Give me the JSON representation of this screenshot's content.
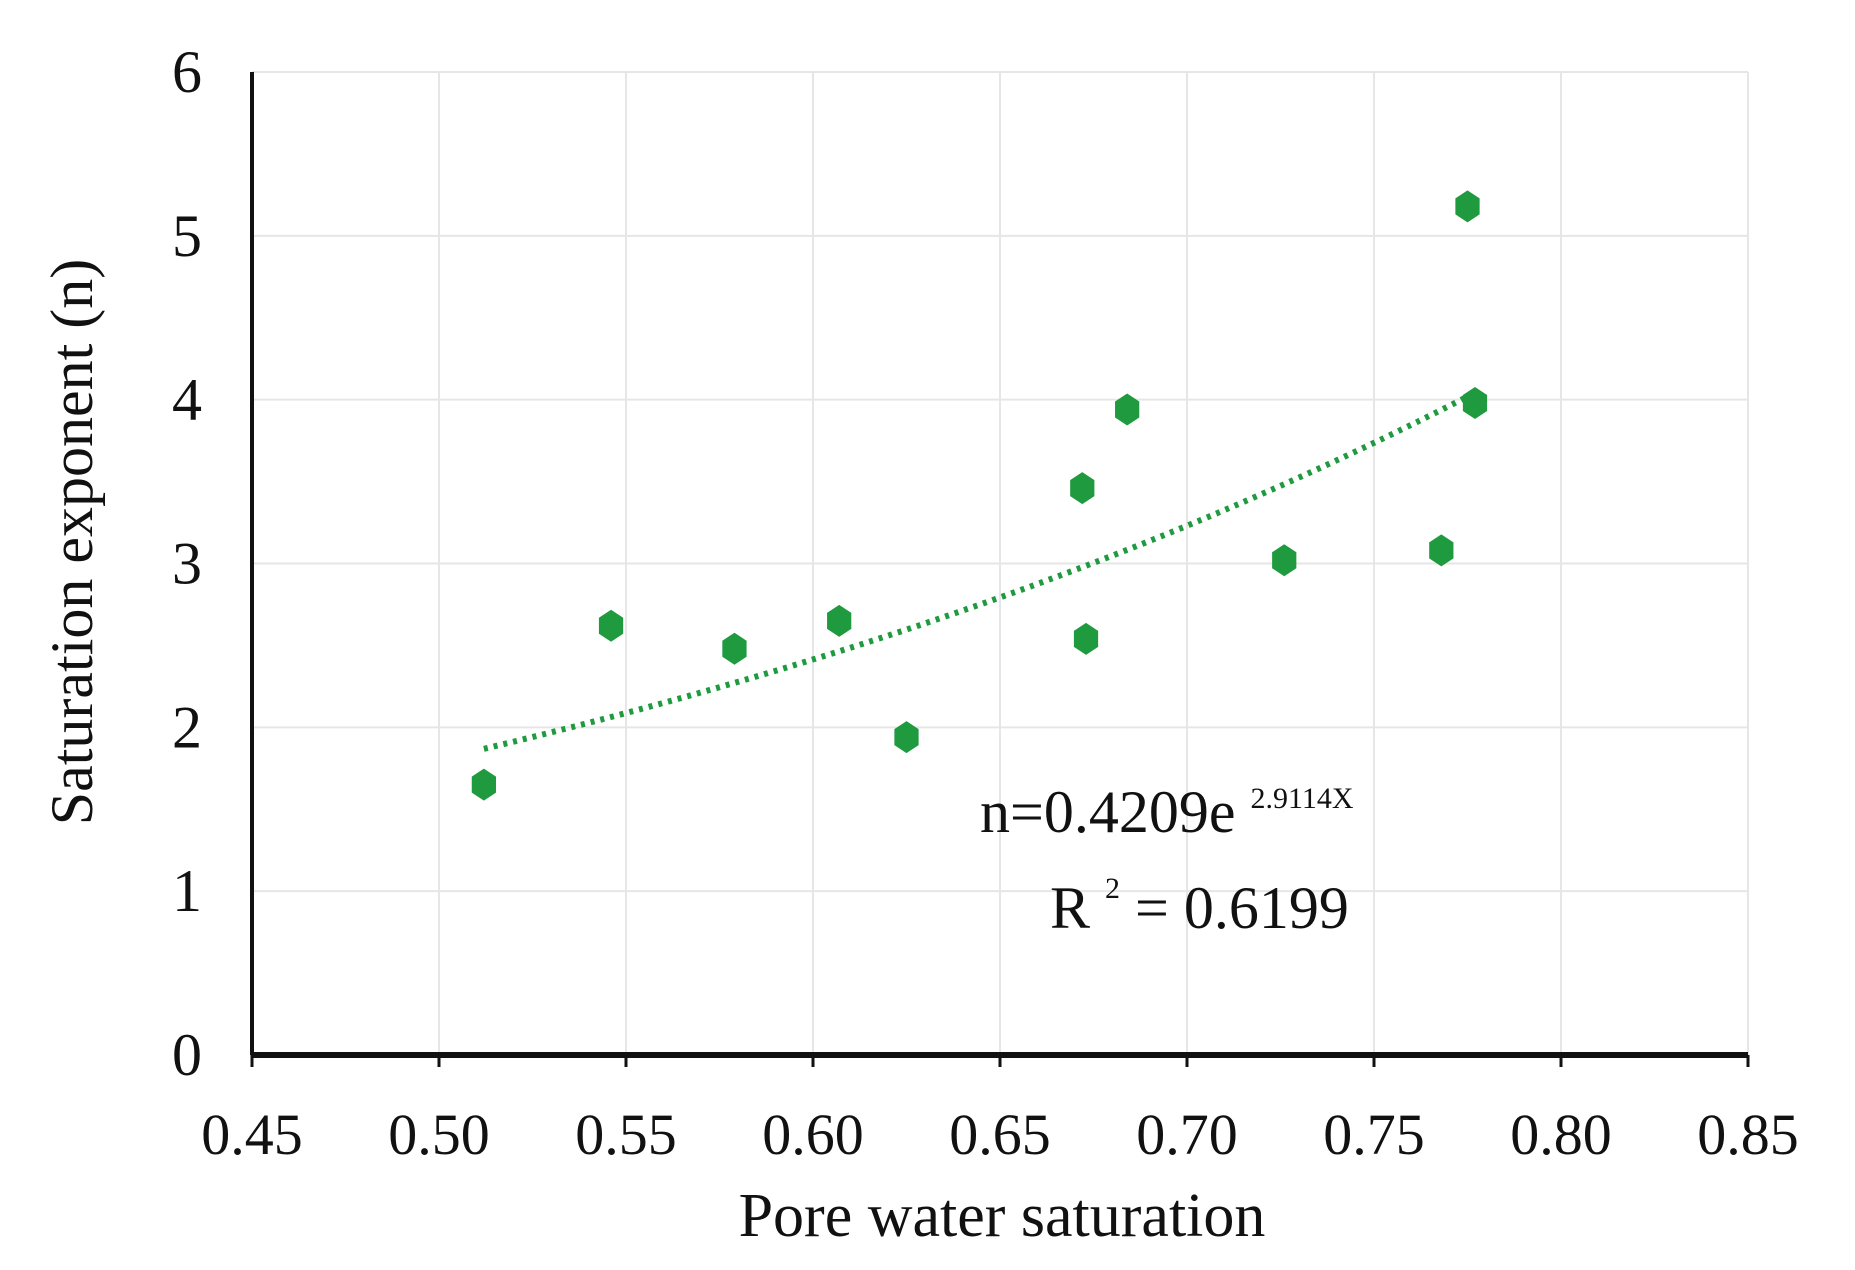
{
  "chart_data": {
    "type": "scatter",
    "title": "",
    "xlabel": "Pore water saturation",
    "ylabel": "Saturation exponent (n)",
    "xlim": [
      0.45,
      0.85
    ],
    "ylim": [
      0,
      6
    ],
    "x_ticks": [
      "0.45",
      "0.50",
      "0.55",
      "0.60",
      "0.65",
      "0.70",
      "0.75",
      "0.80",
      "0.85"
    ],
    "y_ticks": [
      "0",
      "1",
      "2",
      "3",
      "4",
      "5",
      "6"
    ],
    "grid": true,
    "series": [
      {
        "x": [
          0.512,
          0.546,
          0.579,
          0.607,
          0.625,
          0.672,
          0.673,
          0.684,
          0.726,
          0.768,
          0.775,
          0.777
        ],
        "y": [
          1.65,
          2.62,
          2.48,
          2.65,
          1.94,
          3.46,
          2.54,
          3.94,
          3.02,
          3.08,
          5.18,
          3.98
        ],
        "color": "#1f9a3f"
      }
    ],
    "trendline": {
      "type": "exponential",
      "a": 0.4209,
      "b": 2.9114,
      "x_range": [
        0.512,
        0.777
      ],
      "color": "#1f9a3f",
      "style": "dotted"
    },
    "annotations": {
      "equation_base": "n=0.4209e",
      "equation_exponent": "2.9114X",
      "r2_label": "R",
      "r2_power": "2",
      "r2_value": " = 0.6199"
    }
  }
}
